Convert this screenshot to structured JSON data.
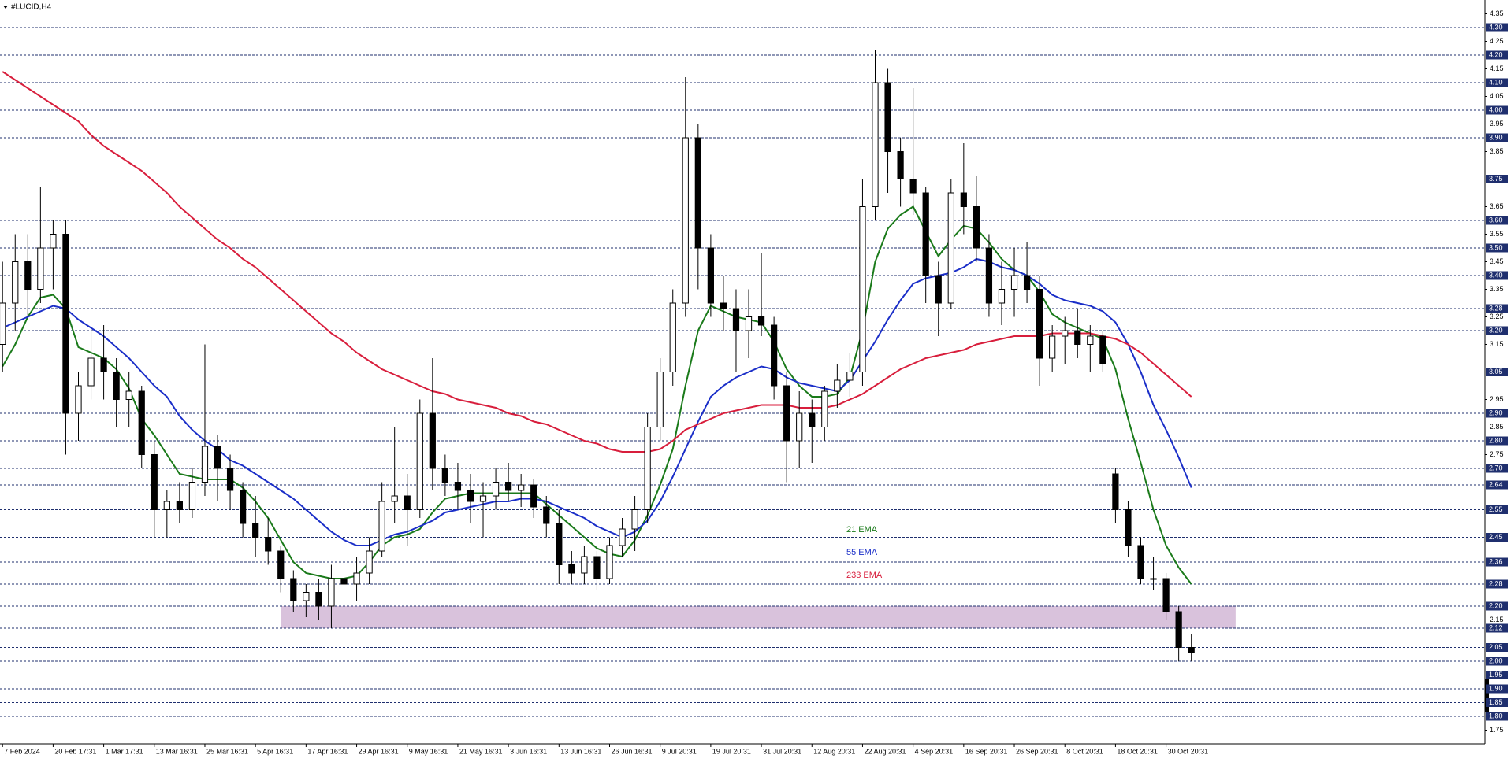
{
  "chart_data": {
    "type": "candlestick",
    "title": "#LUCID,H4",
    "xlim": [
      -0.2,
      117.2
    ],
    "ylim": [
      1.7,
      4.4
    ],
    "xticks": [
      {
        "value": 0,
        "label": "7 Feb 2024"
      },
      {
        "value": 4,
        "label": "20 Feb 17:31"
      },
      {
        "value": 8,
        "label": "1 Mar 17:31"
      },
      {
        "value": 12,
        "label": "13 Mar 16:31"
      },
      {
        "value": 16,
        "label": "25 Mar 16:31"
      },
      {
        "value": 20,
        "label": "5 Apr 16:31"
      },
      {
        "value": 24,
        "label": "17 Apr 16:31"
      },
      {
        "value": 28,
        "label": "29 Apr 16:31"
      },
      {
        "value": 32,
        "label": "9 May 16:31"
      },
      {
        "value": 36,
        "label": "21 May 16:31"
      },
      {
        "value": 40,
        "label": "3 Jun 16:31"
      },
      {
        "value": 44,
        "label": "13 Jun 16:31"
      },
      {
        "value": 48,
        "label": "26 Jun 16:31"
      },
      {
        "value": 52,
        "label": "9 Jul 20:31"
      },
      {
        "value": 56,
        "label": "19 Jul 20:31"
      },
      {
        "value": 60,
        "label": "31 Jul 20:31"
      },
      {
        "value": 64,
        "label": "12 Aug 20:31"
      },
      {
        "value": 68,
        "label": "22 Aug 20:31"
      },
      {
        "value": 72,
        "label": "4 Sep 20:31"
      },
      {
        "value": 76,
        "label": "16 Sep 20:31"
      },
      {
        "value": 80,
        "label": "26 Sep 20:31"
      },
      {
        "value": 84,
        "label": "8 Oct 20:31"
      },
      {
        "value": 88,
        "label": "18 Oct 20:31"
      },
      {
        "value": 92,
        "label": "30 Oct 20:31"
      }
    ],
    "yticks": [
      4.35,
      4.25,
      4.15,
      4.05,
      3.95,
      3.85,
      3.65,
      3.55,
      3.45,
      3.35,
      3.25,
      3.15,
      2.95,
      2.85,
      2.75,
      2.15,
      1.75
    ],
    "levels": [
      {
        "value": 4.3,
        "label": "4.30"
      },
      {
        "value": 4.2,
        "label": "4.20"
      },
      {
        "value": 4.1,
        "label": "4.10"
      },
      {
        "value": 4,
        "label": "4.00"
      },
      {
        "value": 3.9,
        "label": "3.90"
      },
      3.75,
      {
        "value": 3.6,
        "label": "3.60"
      },
      {
        "value": 3.5,
        "label": "3.50"
      },
      {
        "value": 3.4,
        "label": "3.40"
      },
      3.28,
      {
        "value": 3.2,
        "label": "3.20"
      },
      3.05,
      {
        "value": 2.9,
        "label": "2.90"
      },
      {
        "value": 2.8,
        "label": "2.80"
      },
      {
        "value": 2.7,
        "label": "2.70"
      },
      2.64,
      2.55,
      2.45,
      2.36,
      2.28,
      {
        "value": 2.2,
        "label": "2.20"
      },
      2.12,
      2.05,
      {
        "value": 2,
        "label": "2.00"
      },
      1.95,
      {
        "value": 1.9,
        "label": "1.90"
      },
      1.85,
      {
        "value": 1.8,
        "label": "1.80"
      }
    ],
    "level_color": "#1f2f6e",
    "zone": {
      "low": 2.12,
      "high": 2.2,
      "from": 22,
      "to": 97.5,
      "color": "#d9c2dc"
    },
    "ohlc": [
      [
        3.15,
        3.45,
        3.05,
        3.3
      ],
      [
        3.3,
        3.55,
        3.2,
        3.45
      ],
      [
        3.45,
        3.55,
        3.25,
        3.35
      ],
      [
        3.35,
        3.72,
        3.3,
        3.5
      ],
      [
        3.5,
        3.6,
        3.35,
        3.55
      ],
      [
        3.55,
        3.6,
        2.75,
        2.9
      ],
      [
        2.9,
        3.05,
        2.8,
        3.0
      ],
      [
        3.0,
        3.2,
        2.95,
        3.1
      ],
      [
        3.1,
        3.22,
        2.95,
        3.05
      ],
      [
        3.05,
        3.1,
        2.85,
        2.95
      ],
      [
        2.95,
        3.05,
        2.85,
        2.98
      ],
      [
        2.98,
        3.0,
        2.7,
        2.75
      ],
      [
        2.75,
        2.8,
        2.45,
        2.55
      ],
      [
        2.55,
        2.62,
        2.45,
        2.58
      ],
      [
        2.58,
        2.65,
        2.5,
        2.55
      ],
      [
        2.55,
        2.7,
        2.52,
        2.65
      ],
      [
        2.65,
        3.15,
        2.6,
        2.78
      ],
      [
        2.78,
        2.82,
        2.58,
        2.7
      ],
      [
        2.7,
        2.75,
        2.55,
        2.62
      ],
      [
        2.62,
        2.65,
        2.45,
        2.5
      ],
      [
        2.5,
        2.6,
        2.38,
        2.45
      ],
      [
        2.45,
        2.52,
        2.35,
        2.4
      ],
      [
        2.4,
        2.42,
        2.25,
        2.3
      ],
      [
        2.3,
        2.33,
        2.18,
        2.22
      ],
      [
        2.22,
        2.28,
        2.16,
        2.25
      ],
      [
        2.25,
        2.3,
        2.15,
        2.2
      ],
      [
        2.2,
        2.35,
        2.12,
        2.3
      ],
      [
        2.3,
        2.4,
        2.2,
        2.28
      ],
      [
        2.28,
        2.38,
        2.22,
        2.32
      ],
      [
        2.32,
        2.45,
        2.28,
        2.4
      ],
      [
        2.4,
        2.65,
        2.38,
        2.58
      ],
      [
        2.58,
        2.85,
        2.5,
        2.6
      ],
      [
        2.6,
        2.68,
        2.42,
        2.55
      ],
      [
        2.55,
        2.95,
        2.52,
        2.9
      ],
      [
        2.9,
        3.1,
        2.62,
        2.7
      ],
      [
        2.7,
        2.75,
        2.6,
        2.65
      ],
      [
        2.65,
        2.72,
        2.55,
        2.62
      ],
      [
        2.62,
        2.68,
        2.5,
        2.58
      ],
      [
        2.58,
        2.65,
        2.45,
        2.6
      ],
      [
        2.6,
        2.7,
        2.55,
        2.65
      ],
      [
        2.65,
        2.72,
        2.58,
        2.62
      ],
      [
        2.62,
        2.68,
        2.56,
        2.64
      ],
      [
        2.64,
        2.66,
        2.52,
        2.56
      ],
      [
        2.56,
        2.6,
        2.45,
        2.5
      ],
      [
        2.5,
        2.55,
        2.28,
        2.35
      ],
      [
        2.35,
        2.4,
        2.28,
        2.32
      ],
      [
        2.32,
        2.42,
        2.28,
        2.38
      ],
      [
        2.38,
        2.4,
        2.26,
        2.3
      ],
      [
        2.3,
        2.45,
        2.28,
        2.42
      ],
      [
        2.42,
        2.52,
        2.38,
        2.48
      ],
      [
        2.48,
        2.6,
        2.4,
        2.55
      ],
      [
        2.55,
        2.9,
        2.5,
        2.85
      ],
      [
        2.85,
        3.1,
        2.8,
        3.05
      ],
      [
        3.05,
        3.35,
        3.0,
        3.3
      ],
      [
        3.3,
        4.12,
        3.25,
        3.9
      ],
      [
        3.9,
        3.95,
        3.35,
        3.5
      ],
      [
        3.5,
        3.55,
        3.25,
        3.3
      ],
      [
        3.3,
        3.4,
        3.2,
        3.28
      ],
      [
        3.28,
        3.35,
        3.05,
        3.2
      ],
      [
        3.2,
        3.35,
        3.1,
        3.25
      ],
      [
        3.25,
        3.48,
        3.18,
        3.22
      ],
      [
        3.22,
        3.25,
        2.95,
        3.0
      ],
      [
        3.0,
        3.05,
        2.65,
        2.8
      ],
      [
        2.8,
        2.98,
        2.7,
        2.9
      ],
      [
        2.9,
        2.95,
        2.72,
        2.85
      ],
      [
        2.85,
        3.0,
        2.8,
        2.98
      ],
      [
        2.98,
        3.08,
        2.92,
        3.02
      ],
      [
        3.02,
        3.12,
        2.96,
        3.05
      ],
      [
        3.05,
        3.75,
        3.0,
        3.65
      ],
      [
        3.65,
        4.22,
        3.6,
        4.1
      ],
      [
        4.1,
        4.15,
        3.7,
        3.85
      ],
      [
        3.85,
        3.9,
        3.65,
        3.75
      ],
      [
        3.75,
        4.08,
        3.62,
        3.7
      ],
      [
        3.7,
        3.72,
        3.3,
        3.4
      ],
      [
        3.4,
        3.45,
        3.18,
        3.3
      ],
      [
        3.3,
        3.75,
        3.28,
        3.7
      ],
      [
        3.7,
        3.88,
        3.55,
        3.65
      ],
      [
        3.65,
        3.76,
        3.45,
        3.5
      ],
      [
        3.5,
        3.55,
        3.25,
        3.3
      ],
      [
        3.3,
        3.45,
        3.22,
        3.35
      ],
      [
        3.35,
        3.5,
        3.25,
        3.4
      ],
      [
        3.4,
        3.52,
        3.3,
        3.35
      ],
      [
        3.35,
        3.4,
        3.0,
        3.1
      ],
      [
        3.1,
        3.22,
        3.05,
        3.18
      ],
      [
        3.18,
        3.25,
        3.08,
        3.2
      ],
      [
        3.2,
        3.28,
        3.1,
        3.15
      ],
      [
        3.15,
        3.22,
        3.05,
        3.18
      ],
      [
        3.18,
        3.2,
        3.05,
        3.08
      ],
      [
        2.68,
        2.7,
        2.5,
        2.55
      ],
      [
        2.55,
        2.58,
        2.38,
        2.42
      ],
      [
        2.42,
        2.45,
        2.28,
        2.3
      ],
      [
        2.3,
        2.38,
        2.26,
        2.3
      ],
      [
        2.3,
        2.32,
        2.15,
        2.18
      ],
      [
        2.18,
        2.2,
        2.0,
        2.05
      ],
      [
        2.05,
        2.1,
        2.0,
        2.03
      ]
    ],
    "series": [
      {
        "name": "21 EMA",
        "color": "#1a7a1a",
        "values": [
          3.07,
          3.15,
          3.25,
          3.32,
          3.33,
          3.28,
          3.14,
          3.12,
          3.1,
          3.06,
          2.99,
          2.88,
          2.82,
          2.75,
          2.68,
          2.67,
          2.66,
          2.66,
          2.66,
          2.63,
          2.58,
          2.52,
          2.44,
          2.36,
          2.32,
          2.31,
          2.3,
          2.3,
          2.31,
          2.36,
          2.42,
          2.45,
          2.46,
          2.48,
          2.54,
          2.59,
          2.6,
          2.61,
          2.61,
          2.61,
          2.61,
          2.61,
          2.61,
          2.57,
          2.53,
          2.49,
          2.45,
          2.41,
          2.39,
          2.38,
          2.44,
          2.53,
          2.64,
          2.77,
          3.0,
          3.2,
          3.29,
          3.27,
          3.25,
          3.24,
          3.23,
          3.16,
          3.06,
          3.0,
          2.96,
          2.96,
          2.97,
          3.03,
          3.2,
          3.45,
          3.57,
          3.62,
          3.65,
          3.56,
          3.47,
          3.53,
          3.58,
          3.57,
          3.52,
          3.46,
          3.42,
          3.4,
          3.34,
          3.26,
          3.23,
          3.21,
          3.19,
          3.17,
          3.06,
          2.88,
          2.72,
          2.55,
          2.42,
          2.34,
          2.28
        ]
      },
      {
        "name": "55 EMA",
        "color": "#1a2ec8",
        "values": [
          3.21,
          3.23,
          3.25,
          3.27,
          3.29,
          3.28,
          3.24,
          3.21,
          3.18,
          3.14,
          3.1,
          3.05,
          3.0,
          2.96,
          2.89,
          2.84,
          2.8,
          2.77,
          2.73,
          2.71,
          2.68,
          2.65,
          2.62,
          2.59,
          2.55,
          2.51,
          2.47,
          2.44,
          2.42,
          2.42,
          2.44,
          2.46,
          2.47,
          2.49,
          2.51,
          2.54,
          2.55,
          2.56,
          2.57,
          2.58,
          2.58,
          2.59,
          2.59,
          2.58,
          2.56,
          2.54,
          2.52,
          2.49,
          2.47,
          2.45,
          2.47,
          2.51,
          2.58,
          2.67,
          2.77,
          2.87,
          2.96,
          3.0,
          3.03,
          3.05,
          3.07,
          3.06,
          3.03,
          3.01,
          3.0,
          2.99,
          2.98,
          3.02,
          3.09,
          3.16,
          3.24,
          3.31,
          3.37,
          3.39,
          3.4,
          3.41,
          3.43,
          3.46,
          3.45,
          3.43,
          3.42,
          3.4,
          3.37,
          3.33,
          3.31,
          3.3,
          3.29,
          3.27,
          3.23,
          3.15,
          3.05,
          2.93,
          2.84,
          2.74,
          2.63
        ]
      },
      {
        "name": "233 EMA",
        "color": "#d81e3c",
        "values": [
          4.14,
          4.11,
          4.08,
          4.05,
          4.02,
          3.99,
          3.96,
          3.91,
          3.87,
          3.84,
          3.81,
          3.78,
          3.74,
          3.7,
          3.65,
          3.61,
          3.57,
          3.53,
          3.5,
          3.46,
          3.43,
          3.39,
          3.35,
          3.31,
          3.27,
          3.23,
          3.19,
          3.16,
          3.12,
          3.09,
          3.06,
          3.04,
          3.02,
          3.0,
          2.98,
          2.97,
          2.95,
          2.94,
          2.93,
          2.92,
          2.9,
          2.89,
          2.87,
          2.86,
          2.84,
          2.82,
          2.8,
          2.79,
          2.77,
          2.76,
          2.76,
          2.76,
          2.77,
          2.8,
          2.84,
          2.86,
          2.88,
          2.9,
          2.91,
          2.92,
          2.93,
          2.93,
          2.93,
          2.92,
          2.92,
          2.92,
          2.93,
          2.95,
          2.97,
          3.0,
          3.03,
          3.06,
          3.08,
          3.1,
          3.11,
          3.12,
          3.13,
          3.15,
          3.16,
          3.17,
          3.18,
          3.18,
          3.18,
          3.19,
          3.19,
          3.19,
          3.19,
          3.18,
          3.17,
          3.15,
          3.12,
          3.08,
          3.04,
          3.0,
          2.96
        ]
      }
    ]
  }
}
